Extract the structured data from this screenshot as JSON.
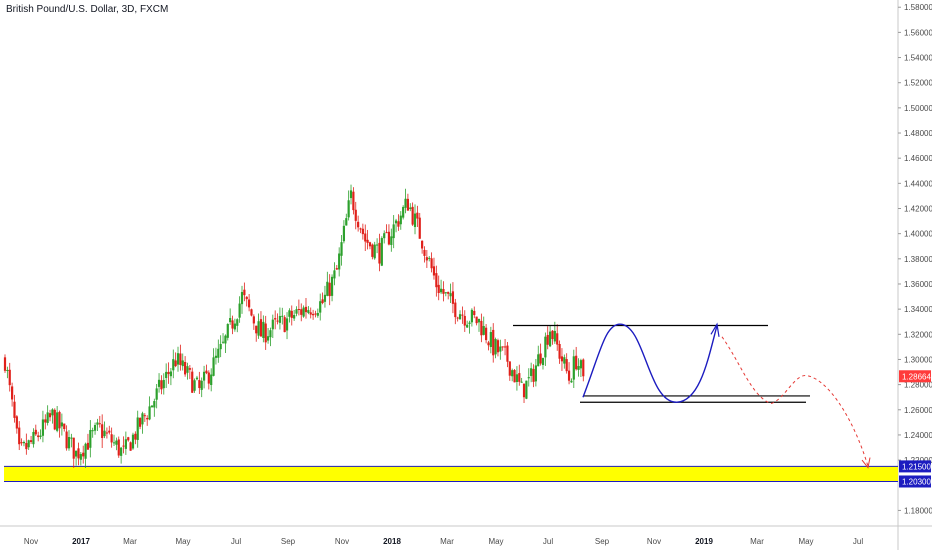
{
  "chart_data": {
    "type": "candlestick",
    "title": "British Pound/U.S. Dollar, 3D, FXCM",
    "ylim": [
      1.17,
      1.59
    ],
    "y_ticks": [
      "1.58000",
      "1.56000",
      "1.54000",
      "1.52000",
      "1.50000",
      "1.48000",
      "1.46000",
      "1.44000",
      "1.42000",
      "1.40000",
      "1.38000",
      "1.36000",
      "1.34000",
      "1.32000",
      "1.30000",
      "1.28000",
      "1.26000",
      "1.24000",
      "1.22000",
      "1.18000"
    ],
    "x_ticks": [
      {
        "label": "Nov",
        "bold": false
      },
      {
        "label": "2017",
        "bold": true
      },
      {
        "label": "Mar",
        "bold": false
      },
      {
        "label": "May",
        "bold": false
      },
      {
        "label": "Jul",
        "bold": false
      },
      {
        "label": "Sep",
        "bold": false
      },
      {
        "label": "Nov",
        "bold": false
      },
      {
        "label": "2018",
        "bold": true
      },
      {
        "label": "Mar",
        "bold": false
      },
      {
        "label": "May",
        "bold": false
      },
      {
        "label": "Jul",
        "bold": false
      },
      {
        "label": "Sep",
        "bold": false
      },
      {
        "label": "Nov",
        "bold": false
      },
      {
        "label": "2019",
        "bold": true
      },
      {
        "label": "Mar",
        "bold": false
      },
      {
        "label": "May",
        "bold": false
      },
      {
        "label": "Jul",
        "bold": false
      }
    ],
    "anchors": [
      [
        0,
        1.3
      ],
      [
        6,
        1.225
      ],
      [
        12,
        1.235
      ],
      [
        20,
        1.255
      ],
      [
        30,
        1.225
      ],
      [
        40,
        1.245
      ],
      [
        50,
        1.225
      ],
      [
        62,
        1.265
      ],
      [
        72,
        1.3
      ],
      [
        82,
        1.275
      ],
      [
        92,
        1.31
      ],
      [
        100,
        1.35
      ],
      [
        108,
        1.32
      ],
      [
        118,
        1.33
      ],
      [
        126,
        1.34
      ],
      [
        134,
        1.345
      ],
      [
        140,
        1.37
      ],
      [
        146,
        1.43
      ],
      [
        152,
        1.395
      ],
      [
        158,
        1.385
      ],
      [
        164,
        1.405
      ],
      [
        170,
        1.425
      ],
      [
        176,
        1.395
      ],
      [
        182,
        1.36
      ],
      [
        188,
        1.345
      ],
      [
        194,
        1.335
      ],
      [
        200,
        1.33
      ],
      [
        206,
        1.31
      ],
      [
        212,
        1.3
      ],
      [
        218,
        1.275
      ],
      [
        222,
        1.285
      ],
      [
        226,
        1.305
      ],
      [
        230,
        1.325
      ],
      [
        234,
        1.305
      ],
      [
        238,
        1.285
      ],
      [
        241,
        1.3
      ],
      [
        244,
        1.287
      ]
    ],
    "current_price": "1.28664",
    "zone_labels": [
      "1.21500",
      "1.20300"
    ],
    "colors": {
      "up": "#2ca02c",
      "down": "#e0201a",
      "zone_fill": "#ffff00",
      "zone_border": "#1c1cc0",
      "current_badge": "#ff3b3b",
      "projection": "#e53935",
      "curve": "#1c1cc0",
      "levels": "#000000"
    }
  }
}
